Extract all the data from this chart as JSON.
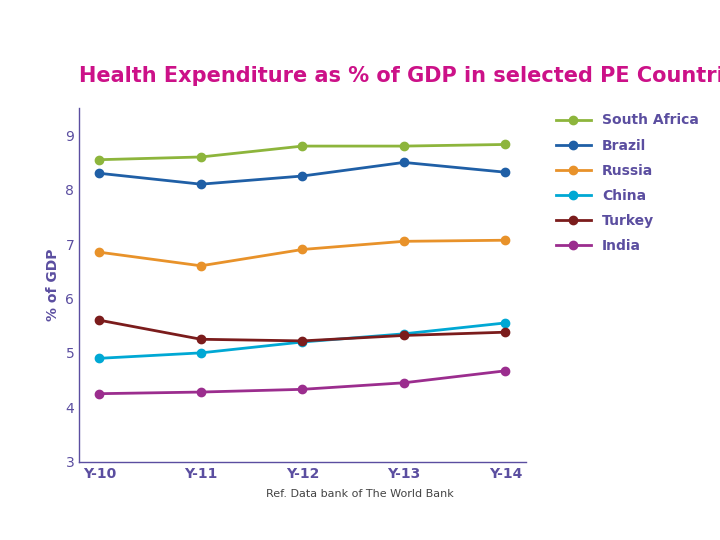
{
  "title": "Health Expenditure as % of GDP in selected PE Countries",
  "title_color": "#cc1188",
  "ylabel": "% of GDP",
  "ylabel_color": "#5b4ea0",
  "x_labels": [
    "Y-10",
    "Y-11",
    "Y-12",
    "Y-13",
    "Y-14"
  ],
  "ylim": [
    3,
    9.5
  ],
  "yticks": [
    3,
    4,
    5,
    6,
    7,
    8,
    9
  ],
  "background_color": "#ffffff",
  "series": [
    {
      "label": "South Africa",
      "color": "#8db53c",
      "values": [
        8.55,
        8.6,
        8.8,
        8.8,
        8.83
      ]
    },
    {
      "label": "Brazil",
      "color": "#1f5fa6",
      "values": [
        8.3,
        8.1,
        8.25,
        8.5,
        8.32
      ]
    },
    {
      "label": "Russia",
      "color": "#e8922a",
      "values": [
        6.85,
        6.6,
        6.9,
        7.05,
        7.07
      ]
    },
    {
      "label": "China",
      "color": "#00a8d4",
      "values": [
        4.9,
        5.0,
        5.2,
        5.35,
        5.55
      ]
    },
    {
      "label": "Turkey",
      "color": "#7b1c1c",
      "values": [
        5.6,
        5.25,
        5.22,
        5.32,
        5.38
      ]
    },
    {
      "label": "India",
      "color": "#9b2d8e",
      "values": [
        4.25,
        4.28,
        4.33,
        4.45,
        4.67
      ]
    }
  ],
  "ref_text": "Ref. Data bank of The World Bank",
  "ref_fontsize": 8,
  "ref_color": "#444444",
  "header_bar1_color": "#1a5ca8",
  "header_bar2_color": "#00aadd",
  "footer_bar1_color": "#1a5ca8",
  "footer_bar2_color": "#00aadd",
  "legend_text_color": "#5b4ea0",
  "tick_color": "#5b4ea0",
  "axis_color": "#5b4ea0",
  "title_fontsize": 15,
  "ylabel_fontsize": 10,
  "legend_fontsize": 10,
  "tick_fontsize": 10,
  "marker": "o",
  "markersize": 6,
  "linewidth": 2.0
}
